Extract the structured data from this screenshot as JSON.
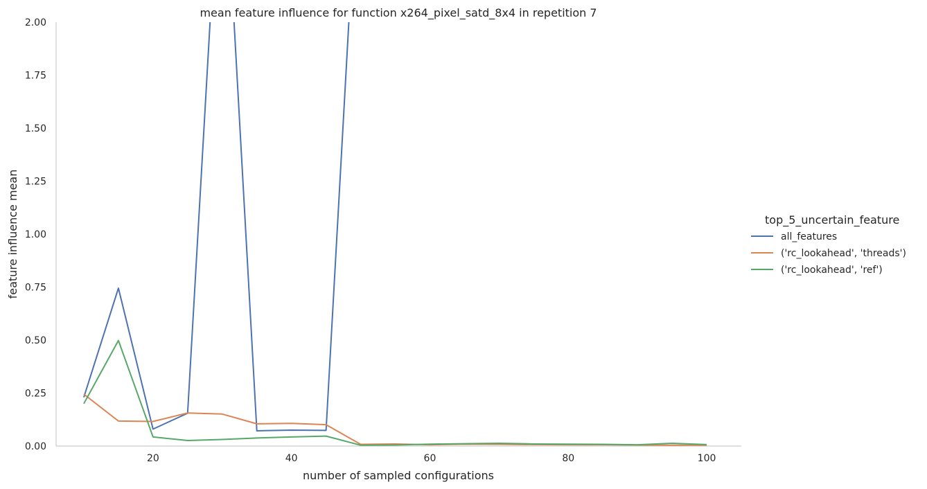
{
  "chart_data": {
    "type": "line",
    "title": "mean feature influence for function x264_pixel_satd_8x4 in repetition 7",
    "xlabel": "number of sampled configurations",
    "ylabel": "feature influence mean",
    "xlim": [
      6,
      105
    ],
    "ylim": [
      0,
      2.0
    ],
    "xticks": [
      20,
      40,
      60,
      80,
      100
    ],
    "yticks": [
      0.0,
      0.25,
      0.5,
      0.75,
      1.0,
      1.25,
      1.5,
      1.75,
      2.0
    ],
    "x_tick_labels": [
      "20",
      "40",
      "60",
      "80",
      "100"
    ],
    "y_tick_labels": [
      "0.00",
      "0.25",
      "0.50",
      "0.75",
      "1.00",
      "1.25",
      "1.50",
      "1.75",
      "2.00"
    ],
    "grid": false,
    "legend": {
      "title": "top_5_uncertain_feature",
      "placement": "right"
    },
    "x": [
      10,
      15,
      20,
      25,
      30,
      35,
      40,
      45,
      50,
      55,
      60,
      65,
      70,
      75,
      80,
      85,
      90,
      95,
      100
    ],
    "series": [
      {
        "name": "all_features",
        "color": "#4c72b0",
        "values": [
          0.23,
          0.745,
          0.08,
          0.155,
          3.0,
          0.072,
          0.075,
          0.074,
          3.0,
          null,
          null,
          null,
          null,
          null,
          null,
          null,
          null,
          null,
          null
        ]
      },
      {
        "name": "('rc_lookahead', 'threads')",
        "color": "#dd8452",
        "values": [
          0.245,
          0.118,
          0.116,
          0.156,
          0.151,
          0.105,
          0.107,
          0.101,
          0.008,
          0.01,
          0.006,
          0.009,
          0.008,
          0.007,
          0.006,
          0.006,
          0.005,
          0.004,
          0.004
        ]
      },
      {
        "name": "('rc_lookahead', 'ref')",
        "color": "#55a868",
        "values": [
          0.2,
          0.498,
          0.043,
          0.026,
          0.031,
          0.038,
          0.043,
          0.047,
          0.004,
          0.005,
          0.009,
          0.011,
          0.013,
          0.01,
          0.009,
          0.008,
          0.006,
          0.013,
          0.007
        ]
      }
    ]
  }
}
